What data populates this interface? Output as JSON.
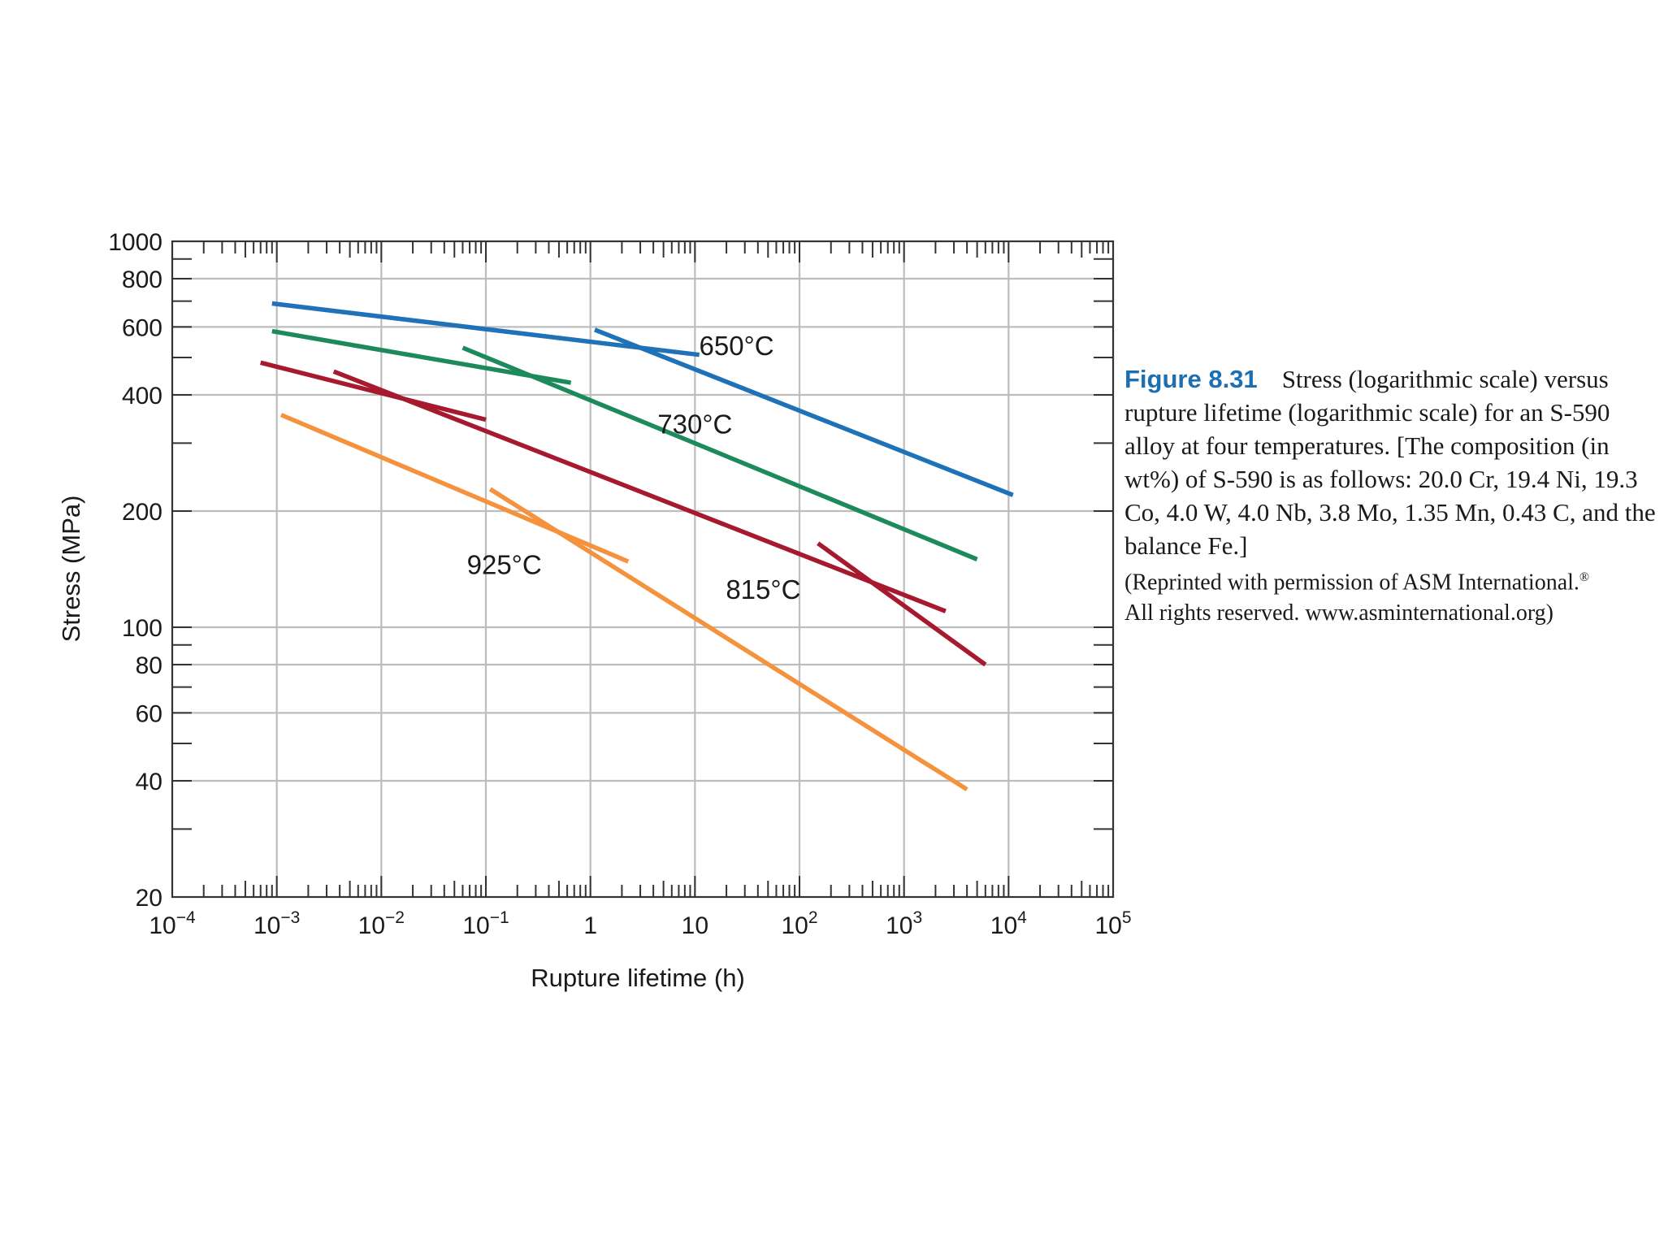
{
  "chart_data": {
    "type": "line",
    "title": "",
    "xlabel": "Rupture lifetime (h)",
    "ylabel": "Stress (MPa)",
    "x_scale": "log",
    "y_scale": "log",
    "xlim": [
      0.0001,
      100000
    ],
    "ylim": [
      20,
      1000
    ],
    "grid": true,
    "x_ticks": [
      {
        "value": 0.0001,
        "base": "10",
        "exp": "−4"
      },
      {
        "value": 0.001,
        "base": "10",
        "exp": "−3"
      },
      {
        "value": 0.01,
        "base": "10",
        "exp": "−2"
      },
      {
        "value": 0.1,
        "base": "10",
        "exp": "−1"
      },
      {
        "value": 1,
        "base": "1",
        "exp": ""
      },
      {
        "value": 10,
        "base": "10",
        "exp": ""
      },
      {
        "value": 100,
        "base": "10",
        "exp": "2"
      },
      {
        "value": 1000,
        "base": "10",
        "exp": "3"
      },
      {
        "value": 10000,
        "base": "10",
        "exp": "4"
      },
      {
        "value": 100000,
        "base": "10",
        "exp": "5"
      }
    ],
    "y_ticks": [
      {
        "value": 1000,
        "label": "1000"
      },
      {
        "value": 800,
        "label": "800"
      },
      {
        "value": 600,
        "label": "600"
      },
      {
        "value": 400,
        "label": "400"
      },
      {
        "value": 200,
        "label": "200"
      },
      {
        "value": 100,
        "label": "100"
      },
      {
        "value": 80,
        "label": "80"
      },
      {
        "value": 60,
        "label": "60"
      },
      {
        "value": 40,
        "label": "40"
      },
      {
        "value": 20,
        "label": "20"
      }
    ],
    "y_minor": [
      900,
      700,
      500,
      300,
      90,
      70,
      50,
      30
    ],
    "series": [
      {
        "name": "650°C",
        "color": "#1f72b8",
        "label_at": [
          25,
          535
        ],
        "segments": [
          [
            [
              0.0009,
              690
            ],
            [
              11,
              508
            ]
          ],
          [
            [
              1.1,
              590
            ],
            [
              11000,
              220
            ]
          ]
        ]
      },
      {
        "name": "730°C",
        "color": "#1d8a5c",
        "label_at": [
          10,
          335
        ],
        "segments": [
          [
            [
              0.0009,
              585
            ],
            [
              0.65,
              430
            ]
          ],
          [
            [
              0.06,
              530
            ],
            [
              5000,
              150
            ]
          ]
        ]
      },
      {
        "name": "815°C",
        "color": "#a6192e",
        "label_at": [
          45,
          125
        ],
        "segments": [
          [
            [
              0.0007,
              485
            ],
            [
              0.1,
              345
            ]
          ],
          [
            [
              0.0035,
              460
            ],
            [
              2500,
              110
            ]
          ],
          [
            [
              150,
              165
            ],
            [
              6000,
              80
            ]
          ]
        ]
      },
      {
        "name": "925°C",
        "color": "#f5923e",
        "label_at": [
          0.15,
          145
        ],
        "segments": [
          [
            [
              0.0011,
              355
            ],
            [
              2.3,
              148
            ]
          ],
          [
            [
              0.11,
              228
            ],
            [
              4000,
              38
            ]
          ]
        ]
      }
    ]
  },
  "caption": {
    "figure_number": "Figure 8.31",
    "text": "Stress (logarithmic scale) versus rupture lifetime (logarithmic scale) for an S-590 alloy at four temperatures. [The composition (in wt%) of S-590 is as follows: 20.0 Cr, 19.4 Ni, 19.3 Co, 4.0 W, 4.0 Nb, 3.8 Mo, 1.35 Mn, 0.43 C, and the balance Fe.]",
    "credit": "(Reprinted with permission of ASM International.",
    "credit_mark": "®",
    "credit_end": "All rights reserved. www.asminternational.org)"
  }
}
